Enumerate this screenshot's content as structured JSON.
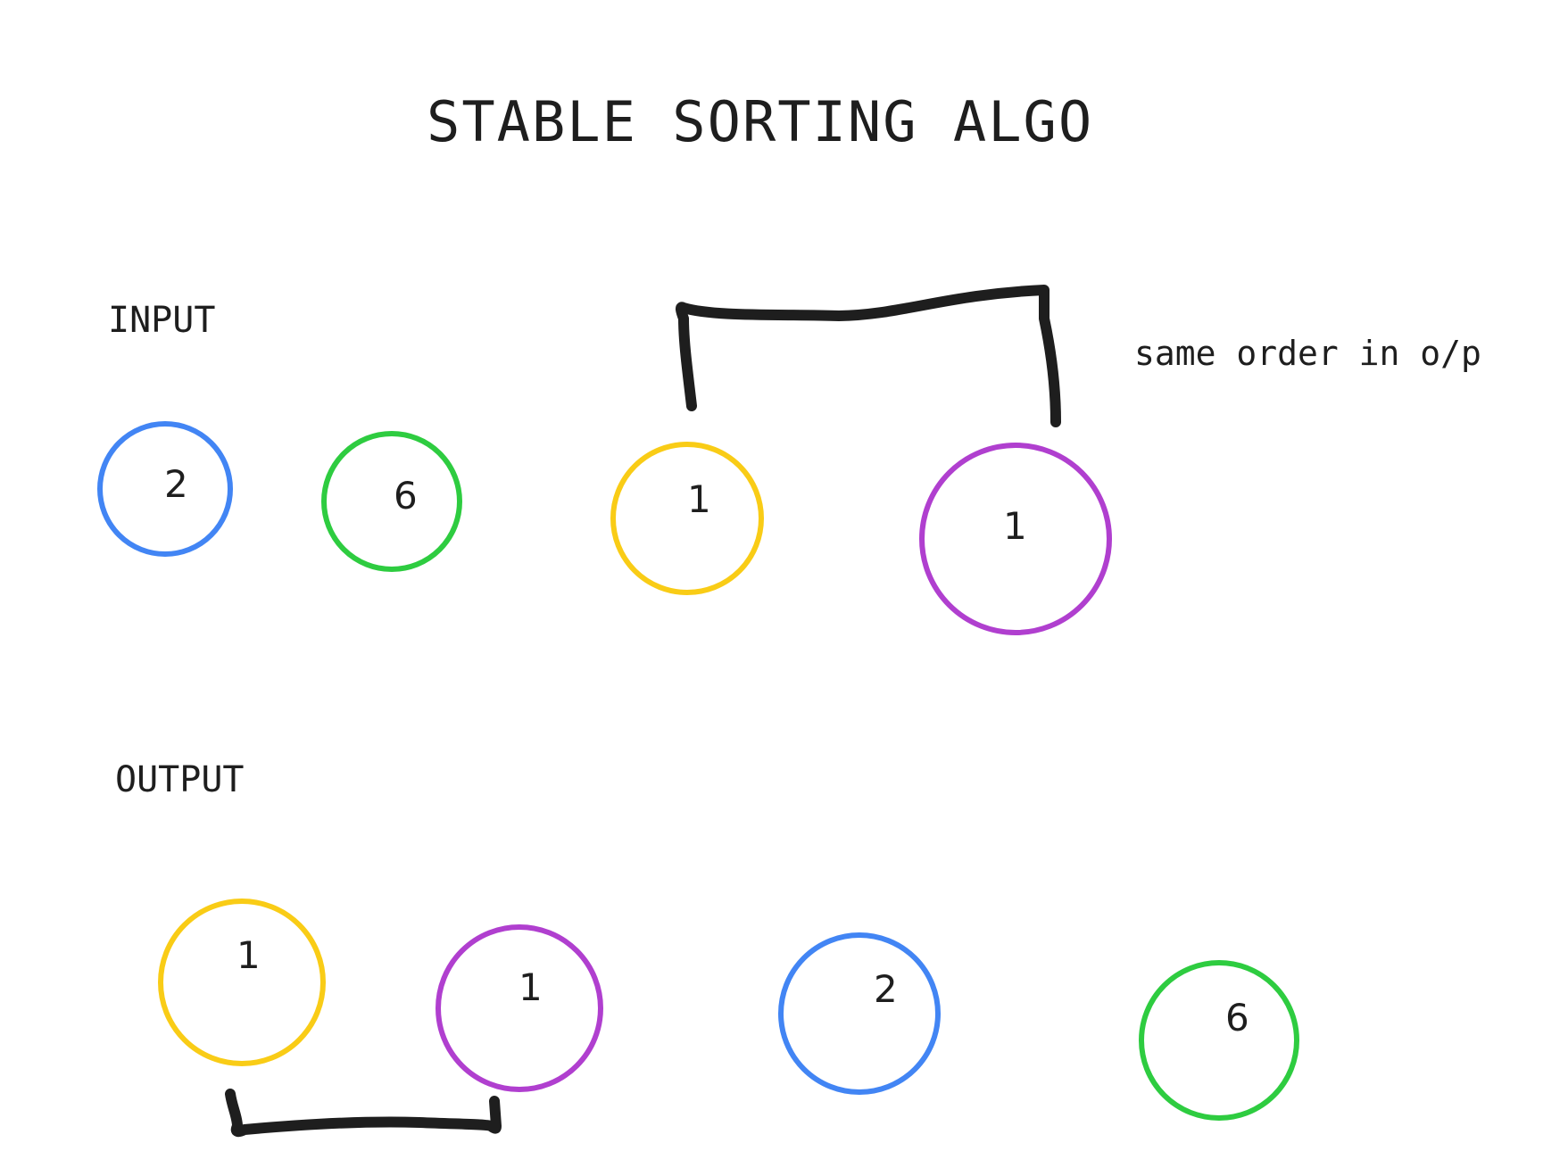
{
  "title": "STABLE SORTING ALGO",
  "input": {
    "label": "INPUT",
    "items": [
      {
        "value": "2",
        "color": "#4285f4"
      },
      {
        "value": "6",
        "color": "#2ecc40"
      },
      {
        "value": "1",
        "color": "#f9cc16"
      },
      {
        "value": "1",
        "color": "#b03fcf"
      }
    ]
  },
  "output": {
    "label": "OUTPUT",
    "items": [
      {
        "value": "1",
        "color": "#f9cc16"
      },
      {
        "value": "1",
        "color": "#b03fcf"
      },
      {
        "value": "2",
        "color": "#4285f4"
      },
      {
        "value": "6",
        "color": "#2ecc40"
      }
    ]
  },
  "note": "same order in o/p"
}
